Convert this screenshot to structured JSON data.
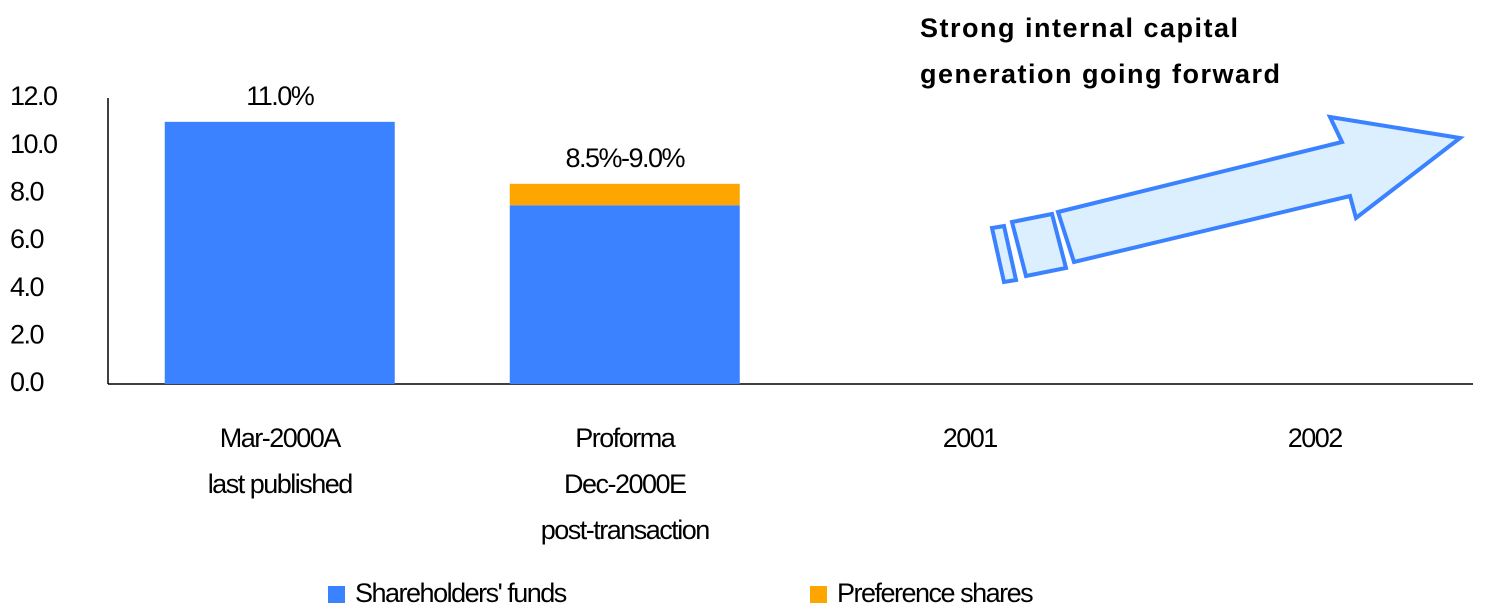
{
  "chart_data": {
    "type": "stacked_bar",
    "callout": [
      "Strong internal capital",
      "generation going forward"
    ],
    "categories": [
      [
        "Mar-2000A",
        "last published"
      ],
      [
        "Proforma",
        "Dec-2000E",
        "post-transaction"
      ],
      [
        "2001"
      ],
      [
        "2002"
      ]
    ],
    "series": [
      {
        "name": "Shareholders' funds",
        "color": "#3a82ff",
        "values": [
          11.0,
          7.5,
          null,
          null
        ]
      },
      {
        "name": "Preference shares",
        "color": "#ffa500",
        "values": [
          0,
          0.9,
          null,
          null
        ]
      }
    ],
    "annotations": [
      "11.0%",
      "8.5%-9.0%"
    ],
    "ylim": [
      0,
      12
    ],
    "yticks": [
      {
        "value": 0,
        "label": "0.0"
      },
      {
        "value": 2,
        "label": "2.0"
      },
      {
        "value": 4,
        "label": "4.0"
      },
      {
        "value": 6,
        "label": "6.0"
      },
      {
        "value": 8,
        "label": "8.0"
      },
      {
        "value": 10,
        "label": "10.0"
      },
      {
        "value": 12,
        "label": "12.0"
      }
    ],
    "legend": "bottom"
  }
}
